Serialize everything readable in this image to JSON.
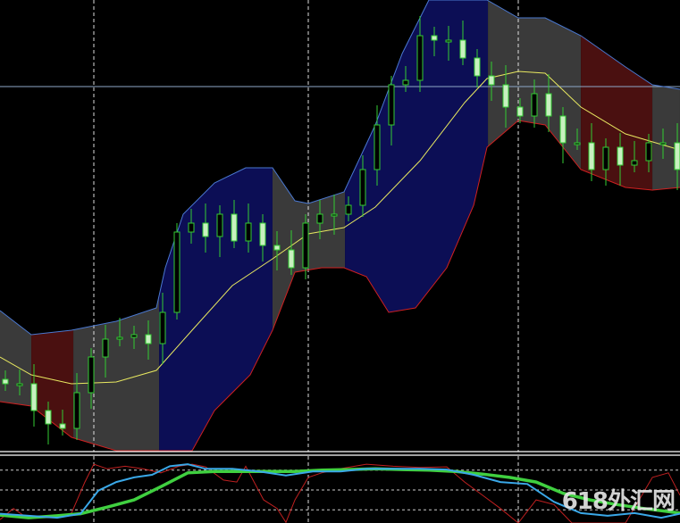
{
  "chart_data": {
    "type": "candlestick",
    "title": "",
    "grid": true,
    "colors": {
      "background": "#000000",
      "candle_up": "#33cc33",
      "candle_body": "#c8f0c0",
      "upper_band": "#4a78d0",
      "lower_band": "#d02020",
      "middle_line": "#e8e860",
      "region_gray": "#3a3a3a",
      "region_navy": "#0c0e55",
      "region_red": "#4a1010",
      "blue_line": "#3aa8e8",
      "green_line": "#40d040",
      "red_line": "#c02020"
    },
    "candles_close": [
      75,
      75,
      45,
      30,
      25,
      65,
      105,
      125,
      127,
      130,
      120,
      155,
      245,
      255,
      240,
      265,
      235,
      255,
      230,
      225,
      205,
      255,
      265,
      265,
      275,
      315,
      365,
      410,
      415,
      465,
      460,
      460,
      440,
      420,
      410,
      385,
      375,
      400,
      375,
      345,
      345,
      315,
      340,
      320,
      325,
      345,
      345,
      315
    ],
    "upper_band": {
      "bar": [
        0,
        2.19,
        5,
        8.13,
        10.94,
        11.56,
        12.81,
        15,
        17.19,
        19.06,
        20.63,
        21.56,
        24.06,
        26.25,
        28.13,
        30,
        34.06,
        36.25,
        38.13,
        40.63,
        43.75,
        45.63,
        47.56
      ],
      "value": [
        157,
        130,
        135,
        145,
        160,
        205,
        265,
        300,
        317,
        317,
        280,
        277,
        290,
        365,
        445,
        505,
        505,
        485,
        485,
        465,
        430,
        410,
        405
      ]
    },
    "lower_band": {
      "bar": [
        0,
        2.19,
        5,
        8.13,
        10.94,
        13.44,
        15,
        17.5,
        19.06,
        20.63,
        22.5,
        24.06,
        25.63,
        27.19,
        29.06,
        31.25,
        33.13,
        34.06,
        36.25,
        38.13,
        40.63,
        43.75,
        45.63,
        47.56
      ],
      "value": [
        55,
        50,
        15,
        0,
        0,
        0,
        45,
        85,
        135,
        200,
        205,
        205,
        195,
        155,
        160,
        205,
        275,
        340,
        370,
        365,
        315,
        295,
        292,
        295
      ]
    },
    "middle_band": {
      "bar": [
        0,
        2.19,
        5,
        8.13,
        10.94,
        13.44,
        16.25,
        19.06,
        21.56,
        24.06,
        26.25,
        29.38,
        32.5,
        34.06,
        36.25,
        38.13,
        40.63,
        43.75,
        47.56
      ],
      "value": [
        105,
        85,
        75,
        77,
        90,
        135,
        185,
        215,
        243,
        250,
        273,
        325,
        390,
        417,
        425,
        423,
        385,
        355,
        337
      ]
    },
    "horizontal_level": 408,
    "regions": [
      {
        "from": 0,
        "to": 2.19,
        "color": "gray"
      },
      {
        "from": 2.19,
        "to": 5.13,
        "color": "red"
      },
      {
        "from": 5.13,
        "to": 11.13,
        "color": "gray"
      },
      {
        "from": 11.13,
        "to": 19.06,
        "color": "navy"
      },
      {
        "from": 19.06,
        "to": 24.13,
        "color": "gray"
      },
      {
        "from": 24.13,
        "to": 34.13,
        "color": "navy"
      },
      {
        "from": 34.13,
        "to": 40.63,
        "color": "gray"
      },
      {
        "from": 40.63,
        "to": 45.63,
        "color": "red"
      },
      {
        "from": 45.63,
        "to": 47.56,
        "color": "gray"
      }
    ],
    "indicator": {
      "ylim": [
        0,
        100
      ],
      "levels": [
        20,
        50,
        80
      ],
      "blue": {
        "bar": [
          0,
          2,
          4,
          5.63,
          6.88,
          8.13,
          9.38,
          10.63,
          11.88,
          13.13,
          14.38,
          16.25,
          18.13,
          20,
          21.88,
          23.75,
          25.63,
          27.5,
          29.38,
          31.25,
          33.13,
          35,
          36.88,
          38.75,
          40.63,
          42.5,
          44.38,
          46.25,
          47.56
        ],
        "value": [
          14,
          11,
          8,
          14,
          49,
          62,
          69,
          73,
          86,
          89,
          82,
          82,
          78,
          72,
          78,
          78,
          82,
          82,
          82,
          81,
          73,
          62,
          59,
          32,
          15,
          11,
          15,
          8,
          14
        ]
      },
      "green": {
        "bar": [
          0,
          2,
          4,
          5.63,
          7.5,
          9.38,
          11.25,
          13.13,
          15,
          16.88,
          18.75,
          20.63,
          22.5,
          24.38,
          26.25,
          28.13,
          30,
          31.88,
          33.75,
          35.63,
          37.5,
          39.38,
          41.25,
          43.13,
          45,
          47.56
        ],
        "value": [
          12,
          8,
          11,
          14,
          24,
          35,
          55,
          76,
          78,
          78,
          78,
          78,
          80,
          81,
          82,
          81,
          80,
          78,
          74,
          69,
          62,
          45,
          35,
          28,
          22,
          15
        ]
      },
      "red": {
        "bar": [
          0,
          0.94,
          1.88,
          3.75,
          5,
          5.94,
          6.56,
          7.5,
          8.75,
          10,
          11.25,
          12.5,
          13.44,
          14.38,
          15.63,
          16.56,
          17.19,
          18.44,
          19.38,
          20,
          20.63,
          21.56,
          22.5,
          23.75,
          25.63,
          27.5,
          29.38,
          31.25,
          32.5,
          33.75,
          35,
          36.25,
          37.5,
          38.75,
          40,
          41.25,
          43.75,
          45.63,
          46.75,
          47.56
        ],
        "value": [
          5,
          22,
          8,
          8,
          15,
          62,
          89,
          82,
          86,
          82,
          76,
          86,
          89,
          85,
          65,
          62,
          86,
          35,
          22,
          1,
          35,
          69,
          76,
          82,
          89,
          86,
          84,
          85,
          62,
          42,
          22,
          0,
          35,
          28,
          0,
          0,
          0,
          69,
          76,
          42
        ]
      }
    }
  },
  "watermark": "618外汇网"
}
